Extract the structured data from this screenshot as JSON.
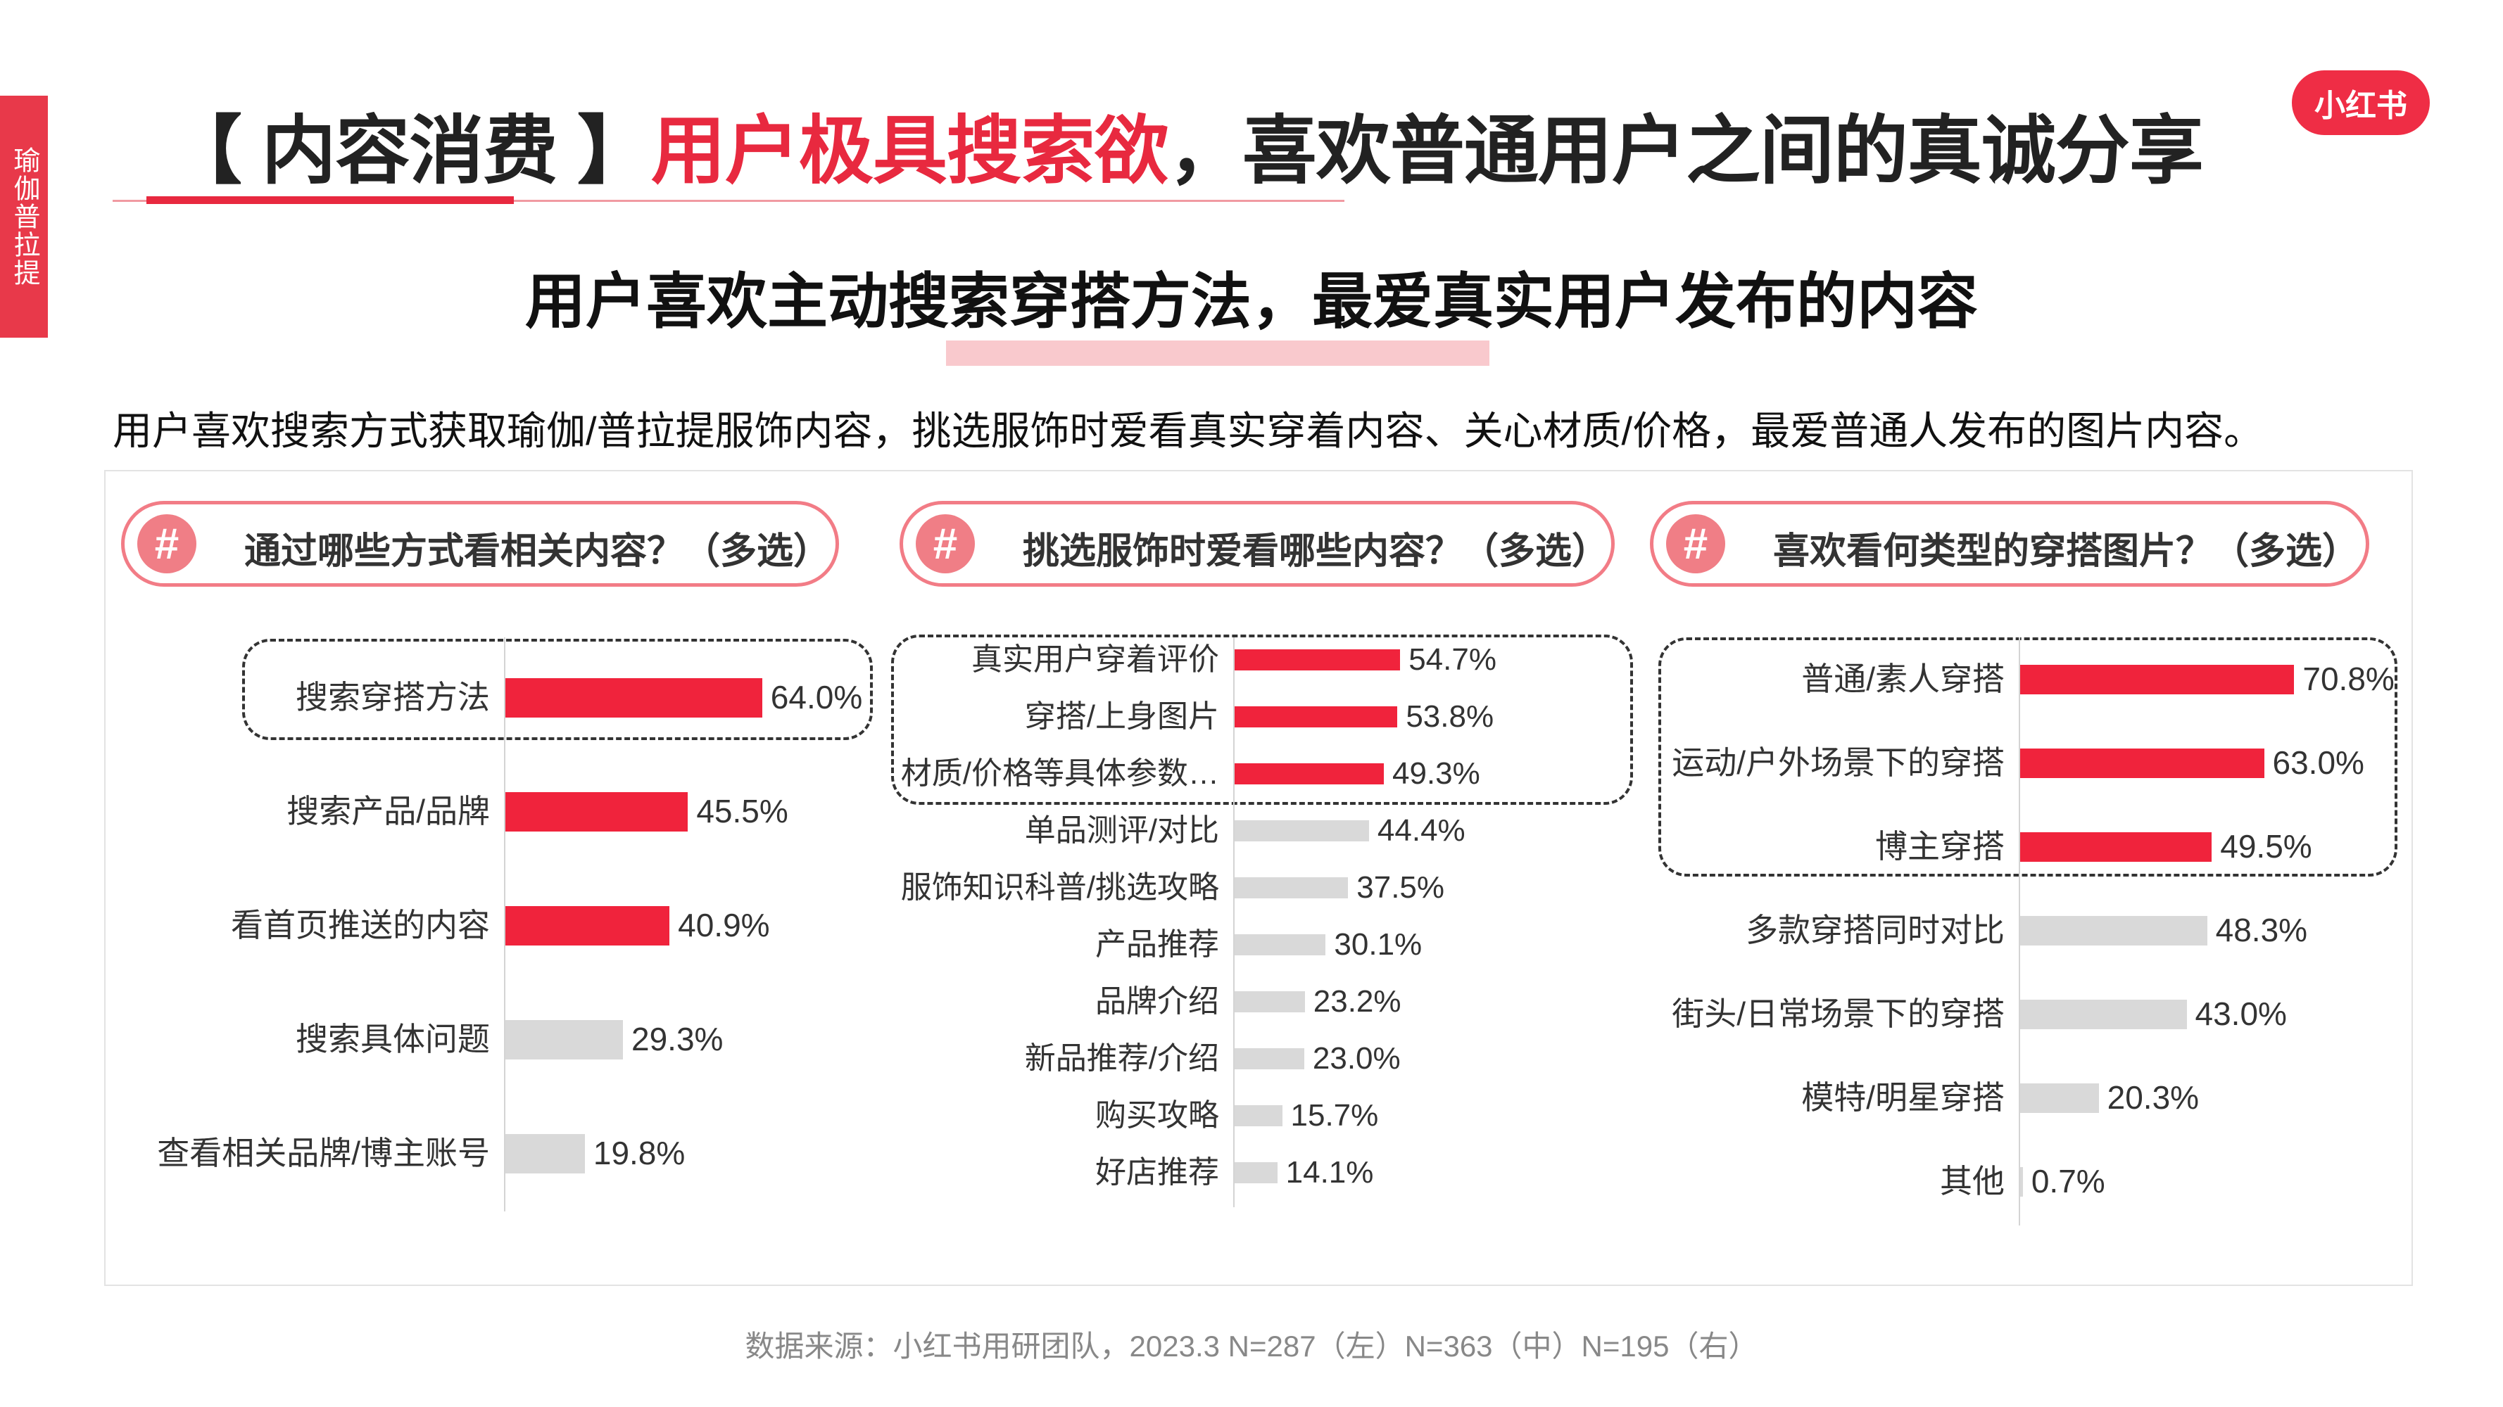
{
  "side_tab": "瑜伽普拉提",
  "title": {
    "bracket": "【 内容消费 】",
    "highlight": "用户极具搜索欲",
    "rest": "，喜欢普通用户之间的真诚分享"
  },
  "logo": "小红书",
  "subtitle": "用户喜欢主动搜索穿搭方法，最爱真实用户发布的内容",
  "description": "用户喜欢搜索方式获取瑜伽/普拉提服饰内容，挑选服饰时爱看真实穿着内容、关心材质/价格，最爱普通人发布的图片内容。",
  "source": "数据来源：小红书用研团队，2023.3 N=287（左）N=363（中）N=195（右）",
  "badge_symbol": "#",
  "colors": {
    "highlight": "#f0233c",
    "normal": "#d9d9d9",
    "accent": "#e8293f"
  },
  "chart_data": [
    {
      "type": "bar",
      "orientation": "horizontal",
      "title": "通过哪些方式看相关内容？（多选）",
      "categories": [
        "搜索穿搭方法",
        "搜索产品/品牌",
        "看首页推送的内容",
        "搜索具体问题",
        "查看相关品牌/博主账号"
      ],
      "values": [
        64.0,
        45.5,
        40.9,
        29.3,
        19.8
      ],
      "value_labels": [
        "64.0%",
        "45.5%",
        "40.9%",
        "29.3%",
        "19.8%"
      ],
      "highlighted": [
        true,
        true,
        true,
        false,
        false
      ],
      "dashed_group": [
        0
      ],
      "unit": "%"
    },
    {
      "type": "bar",
      "orientation": "horizontal",
      "title": "挑选服饰时爱看哪些内容？（多选）",
      "categories": [
        "真实用户穿着评价",
        "穿搭/上身图片",
        "材质/价格等具体参数…",
        "单品测评/对比",
        "服饰知识科普/挑选攻略",
        "产品推荐",
        "品牌介绍",
        "新品推荐/介绍",
        "购买攻略",
        "好店推荐"
      ],
      "values": [
        54.7,
        53.8,
        49.3,
        44.4,
        37.5,
        30.1,
        23.2,
        23.0,
        15.7,
        14.1
      ],
      "value_labels": [
        "54.7%",
        "53.8%",
        "49.3%",
        "44.4%",
        "37.5%",
        "30.1%",
        "23.2%",
        "23.0%",
        "15.7%",
        "14.1%"
      ],
      "highlighted": [
        true,
        true,
        true,
        false,
        false,
        false,
        false,
        false,
        false,
        false
      ],
      "dashed_group": [
        0,
        1,
        2
      ],
      "unit": "%"
    },
    {
      "type": "bar",
      "orientation": "horizontal",
      "title": "喜欢看何类型的穿搭图片？（多选）",
      "categories": [
        "普通/素人穿搭",
        "运动/户外场景下的穿搭",
        "博主穿搭",
        "多款穿搭同时对比",
        "街头/日常场景下的穿搭",
        "模特/明星穿搭",
        "其他"
      ],
      "values": [
        70.8,
        63.0,
        49.5,
        48.3,
        43.0,
        20.3,
        0.7
      ],
      "value_labels": [
        "70.8%",
        "63.0%",
        "49.5%",
        "48.3%",
        "43.0%",
        "20.3%",
        "0.7%"
      ],
      "highlighted": [
        true,
        true,
        true,
        false,
        false,
        false,
        false
      ],
      "dashed_group": [
        0,
        1,
        2
      ],
      "unit": "%"
    }
  ]
}
